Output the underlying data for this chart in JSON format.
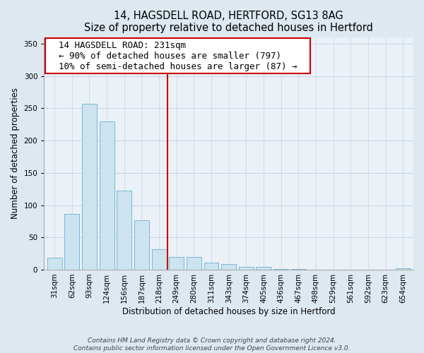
{
  "title": "14, HAGSDELL ROAD, HERTFORD, SG13 8AG",
  "subtitle": "Size of property relative to detached houses in Hertford",
  "xlabel": "Distribution of detached houses by size in Hertford",
  "ylabel": "Number of detached properties",
  "bar_labels": [
    "31sqm",
    "62sqm",
    "93sqm",
    "124sqm",
    "156sqm",
    "187sqm",
    "218sqm",
    "249sqm",
    "280sqm",
    "311sqm",
    "343sqm",
    "374sqm",
    "405sqm",
    "436sqm",
    "467sqm",
    "498sqm",
    "529sqm",
    "561sqm",
    "592sqm",
    "623sqm",
    "654sqm"
  ],
  "bar_values": [
    19,
    86,
    257,
    230,
    122,
    76,
    32,
    20,
    20,
    11,
    9,
    4,
    4,
    1,
    1,
    0,
    0,
    0,
    0,
    0,
    2
  ],
  "bar_color": "#cce4f0",
  "bar_edge_color": "#7ab8d4",
  "vline_x_index": 6.5,
  "vline_color": "#cc0000",
  "annotation_title": "14 HAGSDELL ROAD: 231sqm",
  "annotation_line1": "← 90% of detached houses are smaller (797)",
  "annotation_line2": "10% of semi-detached houses are larger (87) →",
  "annotation_box_color": "#ffffff",
  "annotation_box_edge_color": "#cc0000",
  "ylim": [
    0,
    360
  ],
  "yticks": [
    0,
    50,
    100,
    150,
    200,
    250,
    300,
    350
  ],
  "footer_line1": "Contains HM Land Registry data © Crown copyright and database right 2024.",
  "footer_line2": "Contains public sector information licensed under the Open Government Licence v3.0.",
  "bg_color": "#dde8f0",
  "plot_bg_color": "#eaf1f7",
  "grid_color": "#c0cfe0",
  "title_fontsize": 10.5,
  "axis_label_fontsize": 8.5,
  "tick_fontsize": 7.5,
  "footer_fontsize": 6.5,
  "annotation_fontsize": 9
}
